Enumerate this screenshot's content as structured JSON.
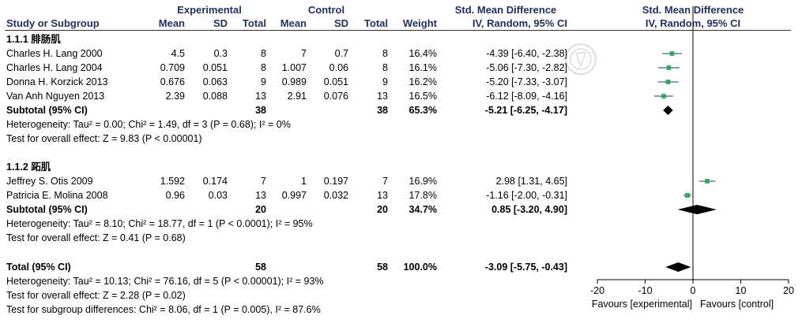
{
  "header": {
    "experimental": "Experimental",
    "control": "Control",
    "smd_left": "Std. Mean Difference",
    "smd_right": "Std. Mean Difference",
    "col_study": "Study or Subgroup",
    "col_mean_e": "Mean",
    "col_sd_e": "SD",
    "col_total_e": "Total",
    "col_mean_c": "Mean",
    "col_sd_c": "SD",
    "col_total_c": "Total",
    "col_weight": "Weight",
    "col_ci_left": "IV, Random, 95% CI",
    "col_ci_right": "IV, Random, 95% CI"
  },
  "subgroups": [
    {
      "title": "1.1.1 腓肠肌",
      "studies": [
        {
          "name": "Charles H. Lang 2000",
          "mean_e": "4.5",
          "sd_e": "0.3",
          "total_e": "8",
          "mean_c": "7",
          "sd_c": "0.7",
          "total_c": "8",
          "weight": "16.4%",
          "ci": "-4.39 [-6.40, -2.38]"
        },
        {
          "name": "Charles H. Lang 2004",
          "mean_e": "0.709",
          "sd_e": "0.051",
          "total_e": "8",
          "mean_c": "1.007",
          "sd_c": "0.06",
          "total_c": "8",
          "weight": "16.1%",
          "ci": "-5.06 [-7.30, -2.82]"
        },
        {
          "name": "Donna H. Korzick 2013",
          "mean_e": "0.676",
          "sd_e": "0.063",
          "total_e": "9",
          "mean_c": "0.989",
          "sd_c": "0.051",
          "total_c": "9",
          "weight": "16.2%",
          "ci": "-5.20 [-7.33, -3.07]"
        },
        {
          "name": "Van Anh Nguyen 2013",
          "mean_e": "2.39",
          "sd_e": "0.088",
          "total_e": "13",
          "mean_c": "2.91",
          "sd_c": "0.076",
          "total_c": "13",
          "weight": "16.5%",
          "ci": "-6.12 [-8.09, -4.16]"
        }
      ],
      "subtotal": {
        "label": "Subtotal (95% CI)",
        "total_e": "38",
        "total_c": "38",
        "weight": "65.3%",
        "ci": "-5.21 [-6.25, -4.17]"
      },
      "heterogeneity": "Heterogeneity: Tau² = 0.00; Chi² = 1.49, df = 3 (P = 0.68); I² = 0%",
      "overall": "Test for overall effect: Z = 9.83 (P < 0.00001)"
    },
    {
      "title": "1.1.2 跖肌",
      "studies": [
        {
          "name": "Jeffrey S. Otis 2009",
          "mean_e": "1.592",
          "sd_e": "0.174",
          "total_e": "7",
          "mean_c": "1",
          "sd_c": "0.197",
          "total_c": "7",
          "weight": "16.9%",
          "ci": "2.98 [1.31, 4.65]"
        },
        {
          "name": "Patricia E. Molina 2008",
          "mean_e": "0.96",
          "sd_e": "0.03",
          "total_e": "13",
          "mean_c": "0.997",
          "sd_c": "0.032",
          "total_c": "13",
          "weight": "17.8%",
          "ci": "-1.16 [-2.00, -0.31]"
        }
      ],
      "subtotal": {
        "label": "Subtotal (95% CI)",
        "total_e": "20",
        "total_c": "20",
        "weight": "34.7%",
        "ci": "0.85 [-3.20, 4.90]"
      },
      "heterogeneity": "Heterogeneity: Tau² = 8.10; Chi² = 18.77, df = 1 (P < 0.0001); I² = 95%",
      "overall": "Test for overall effect: Z = 0.41 (P = 0.68)"
    }
  ],
  "total": {
    "label": "Total (95% CI)",
    "total_e": "58",
    "total_c": "58",
    "weight": "100.0%",
    "ci": "-3.09 [-5.75, -0.43]"
  },
  "total_heterogeneity": "Heterogeneity: Tau² = 10.13; Chi² = 76.16, df = 5 (P < 0.00001); I² = 93%",
  "total_overall": "Test for overall effect: Z = 2.28 (P = 0.02)",
  "subgroup_diff": "Test for subgroup differences: Chi² = 8.06, df = 1 (P = 0.005), I² = 87.6%",
  "watermark_icon": "seal-watermark-icon",
  "chart_data": {
    "type": "scatter",
    "xlim": [
      -20,
      20
    ],
    "ticks": [
      -20,
      -10,
      0,
      10,
      20
    ],
    "tick_labels": [
      "-20",
      "-10",
      "0",
      "10",
      "20"
    ],
    "favours_left": "Favours [experimental]",
    "favours_right": "Favours [control]",
    "studies": [
      {
        "est": -4.39,
        "lo": -6.4,
        "hi": -2.38,
        "w": 16.4
      },
      {
        "est": -5.06,
        "lo": -7.3,
        "hi": -2.82,
        "w": 16.1
      },
      {
        "est": -5.2,
        "lo": -7.33,
        "hi": -3.07,
        "w": 16.2
      },
      {
        "est": -6.12,
        "lo": -8.09,
        "hi": -4.16,
        "w": 16.5
      },
      {
        "est": 2.98,
        "lo": 1.31,
        "hi": 4.65,
        "w": 16.9
      },
      {
        "est": -1.16,
        "lo": -2.0,
        "hi": -0.31,
        "w": 17.8
      }
    ],
    "diamonds": [
      {
        "est": -5.21,
        "lo": -6.25,
        "hi": -4.17
      },
      {
        "est": 0.85,
        "lo": -3.2,
        "hi": 4.9
      },
      {
        "est": -3.09,
        "lo": -5.75,
        "hi": -0.43
      }
    ],
    "colors": {
      "square": "#2fa84f",
      "ci": "#1a3a7a",
      "diamond": "#000000"
    }
  }
}
